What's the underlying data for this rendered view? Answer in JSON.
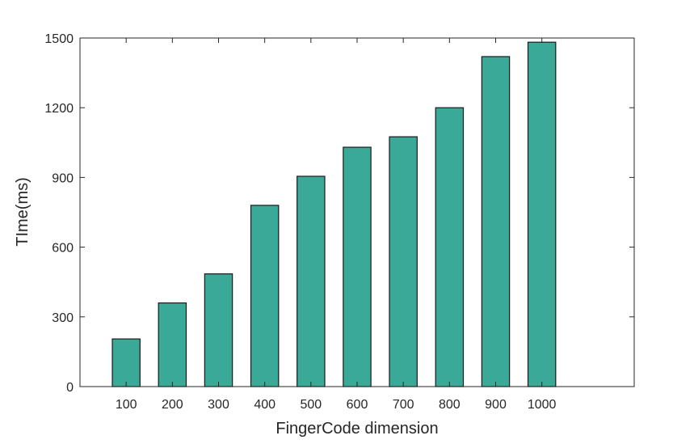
{
  "chart_data": {
    "type": "bar",
    "categories": [
      "100",
      "200",
      "300",
      "400",
      "500",
      "600",
      "700",
      "800",
      "900",
      "1000"
    ],
    "values": [
      205,
      360,
      485,
      780,
      905,
      1030,
      1075,
      1200,
      1420,
      1482
    ],
    "xlabel": "FingerCode dimension",
    "ylabel": "TIme(ms)",
    "ylim": [
      0,
      1500
    ],
    "yticks": [
      0,
      300,
      600,
      900,
      1200,
      1500
    ],
    "x_range_slots": 12,
    "grid": false,
    "bar_color": "#3aa997"
  }
}
